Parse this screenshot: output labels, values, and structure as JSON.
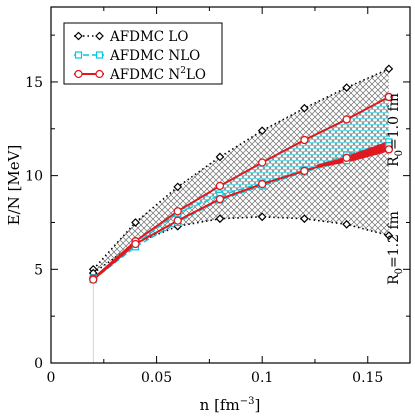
{
  "chart_data": {
    "type": "line",
    "xlabel": "n [fm",
    "xlabel_exp": "−3",
    "xlabel_end": "]",
    "ylabel": "E/N [MeV]",
    "xlim": [
      0,
      0.17
    ],
    "ylim": [
      0,
      19
    ],
    "x_ticks": [
      0,
      0.05,
      0.1,
      0.15
    ],
    "x_tick_labels": [
      "0",
      "0.05",
      "0.1",
      "0.15"
    ],
    "y_ticks": [
      0,
      5,
      10,
      15
    ],
    "y_tick_labels": [
      "0",
      "5",
      "10",
      "15"
    ],
    "grid": false,
    "legend_position": "top-left",
    "x": [
      0.02,
      0.04,
      0.06,
      0.08,
      0.1,
      0.12,
      0.14,
      0.16
    ],
    "series": [
      {
        "name": "AFDMC LO",
        "color": "#000000",
        "marker": "diamond",
        "upper": [
          5.0,
          7.5,
          9.4,
          11.0,
          12.4,
          13.6,
          14.7,
          15.7
        ],
        "lower": [
          4.8,
          6.4,
          7.3,
          7.7,
          7.8,
          7.7,
          7.4,
          6.8
        ]
      },
      {
        "name": "AFDMC NLO",
        "color": "#00c8e0",
        "marker": "square",
        "upper": [
          4.55,
          6.35,
          8.0,
          8.95,
          9.6,
          10.3,
          11.1,
          11.8
        ],
        "lower": [
          4.45,
          6.2,
          7.5,
          8.7,
          9.45,
          10.2,
          10.8,
          11.6
        ]
      },
      {
        "name": "AFDMC N²LO",
        "legend_base": "AFDMC N",
        "legend_sup": "2",
        "legend_end": "LO",
        "color": "#e0191f",
        "marker": "circle",
        "upper": [
          4.5,
          6.5,
          8.1,
          9.45,
          10.7,
          11.9,
          13.0,
          14.2
        ],
        "lower": [
          4.45,
          6.35,
          7.6,
          8.75,
          9.55,
          10.25,
          10.95,
          11.4
        ],
        "fan_x": [
          0.126,
          0.131,
          0.136,
          0.141,
          0.146,
          0.151,
          0.156,
          0.16
        ],
        "fan_top": [
          10.55,
          10.7,
          10.85,
          11.05,
          11.25,
          11.45,
          11.65,
          11.85
        ],
        "fan_bottom": [
          10.45,
          10.55,
          10.65,
          10.75,
          10.9,
          11.05,
          11.2,
          11.35
        ]
      }
    ],
    "annotations": [
      {
        "text_base": "R",
        "text_sub": "0",
        "text_end": "=1.0 fm",
        "near": "upper-right"
      },
      {
        "text_base": "R",
        "text_sub": "0",
        "text_end": "=1.2 fm",
        "near": "lower-right"
      }
    ]
  }
}
